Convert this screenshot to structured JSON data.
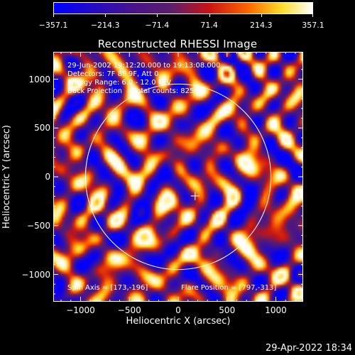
{
  "colorbar": {
    "min": -357.1,
    "max": 357.1,
    "tick_labels": [
      "−357.1",
      "−214.3",
      "−71.4",
      "71.4",
      "214.3",
      "357.1"
    ]
  },
  "chart_data": {
    "type": "heatmap",
    "title": "Reconstructed RHESSI Image",
    "xlabel": "Heliocentric X (arcsec)",
    "ylabel": "Heliocentric Y (arcsec)",
    "xlim": [
      -1280,
      1280
    ],
    "ylim": [
      -1280,
      1280
    ],
    "x_ticks": [
      -1000,
      -500,
      0,
      500,
      1000
    ],
    "y_ticks": [
      -1000,
      -500,
      0,
      500,
      1000
    ],
    "x_tick_labels": [
      "−1000",
      "−500",
      "0",
      "500",
      "1000"
    ],
    "y_tick_labels": [
      "−1000",
      "−500",
      "0",
      "500",
      "1000"
    ],
    "value_range": [
      -357.1,
      357.1
    ],
    "solar_limb_radius": 950,
    "cross_marker": [
      173,
      -196
    ],
    "annotations": [
      "29-Jun-2002 19:12:20.000 to 19:13:08.000",
      "Detectors: 7F 8F 9F, Att 0",
      "Energy Range: 6.0 - 12.0 keV",
      "Back Projection     Total counts: 825."
    ],
    "spin_axis_label": "Spin Axis = [173,-196]",
    "flare_position_label": "Flare Position = [797,-313]"
  },
  "footer": {
    "timestamp": "29-Apr-2022 18:34"
  }
}
